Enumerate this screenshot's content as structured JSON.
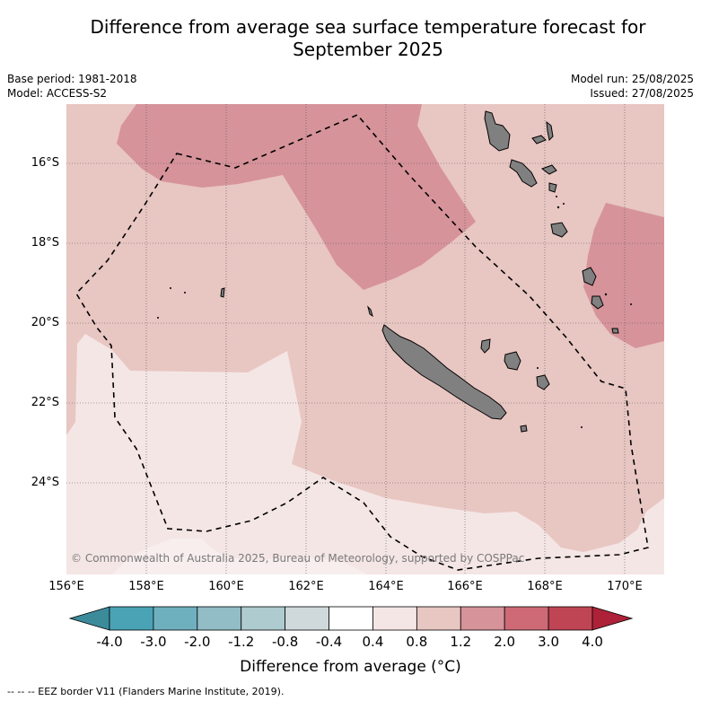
{
  "title": "Difference from average sea surface temperature forecast for September 2025",
  "base_period": "Base period: 1981-2018",
  "model": "Model: ACCESS-S2",
  "model_run": "Model run: 25/08/2025",
  "issued": "Issued: 27/08/2025",
  "copyright": "© Commonwealth of Australia 2025, Bureau of Meteorology, supported by COSPPac",
  "lat_labels": [
    "16°S",
    "18°S",
    "20°S",
    "22°S",
    "24°S"
  ],
  "lon_labels": [
    "156°E",
    "158°E",
    "160°E",
    "162°E",
    "164°E",
    "166°E",
    "168°E",
    "170°E"
  ],
  "colorbar": {
    "title": "Difference from average (°C)",
    "tick_labels": [
      "-4.0",
      "-3.0",
      "-2.0",
      "-1.2",
      "-0.8",
      "-0.4",
      "0.4",
      "0.8",
      "1.2",
      "2.0",
      "3.0",
      "4.0"
    ],
    "colors": [
      "#4aa3b5",
      "#6fb0be",
      "#92bcc6",
      "#aecbcf",
      "#cfd9db",
      "#ffffff",
      "#f4e6e5",
      "#e8c6c2",
      "#d6939a",
      "#cd6a76",
      "#bf4554"
    ],
    "under_color": "#3c8b9b",
    "over_color": "#ad2239"
  },
  "anomaly_colors": {
    "band_0_4_to_0_8": "#f4e6e5",
    "band_0_8_to_1_2": "#e8c6c2",
    "band_1_2_to_2_0": "#d6939a",
    "land": "#808080"
  },
  "eez_note": "-- -- -- EEZ border V11 (Flanders Marine Institute, 2019)."
}
